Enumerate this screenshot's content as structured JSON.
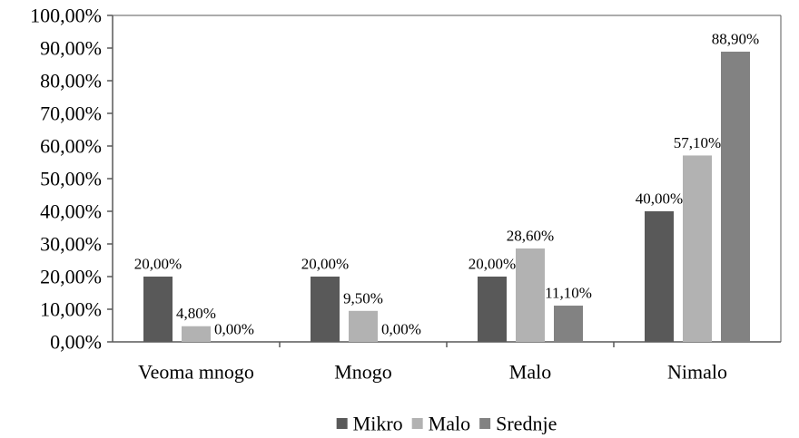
{
  "chart_data": {
    "type": "bar",
    "categories": [
      "Veoma mnogo",
      "Mnogo",
      "Malo",
      "Nimalo"
    ],
    "series": [
      {
        "name": "Mikro",
        "color": "#595959",
        "values": [
          20.0,
          20.0,
          20.0,
          40.0
        ],
        "labels": [
          "20,00%",
          "20,00%",
          "20,00%",
          "40,00%"
        ]
      },
      {
        "name": "Malo",
        "color": "#b2b2b2",
        "values": [
          4.8,
          9.5,
          28.6,
          57.1
        ],
        "labels": [
          "4,80%",
          "9,50%",
          "28,60%",
          "57,10%"
        ]
      },
      {
        "name": "Srednje",
        "color": "#828282",
        "values": [
          0.0,
          0.0,
          11.1,
          88.9
        ],
        "labels": [
          "0,00%",
          "0,00%",
          "11,10%",
          "88,90%"
        ]
      }
    ],
    "ylim": [
      0,
      100
    ],
    "yticks": [
      "0,00%",
      "10,00%",
      "20,00%",
      "30,00%",
      "40,00%",
      "50,00%",
      "60,00%",
      "70,00%",
      "80,00%",
      "90,00%",
      "100,00%"
    ],
    "grid": false,
    "legend_position": "bottom"
  }
}
